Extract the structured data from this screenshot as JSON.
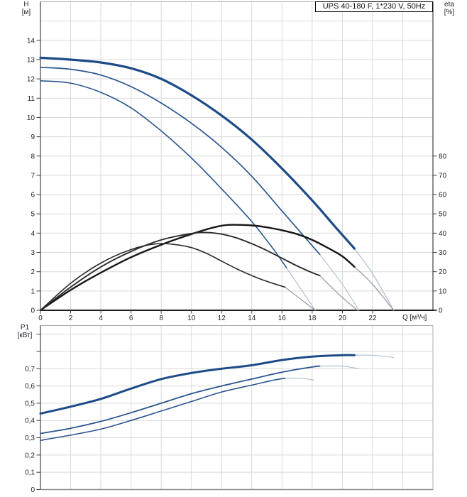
{
  "panel": {
    "background": "#ffffff"
  },
  "styles": {
    "grid": "#d9d9d9",
    "border": "#ababab",
    "axis_line": "#4d4d4d",
    "baseline": "#000000",
    "tick": "#3a3a3a",
    "curve_blue": "#1d4b87",
    "curve_blue_thin": "#2a568e",
    "curve_black": "#161616",
    "runout_blue": "#b2c0d6",
    "runout_gray": "#96989d"
  },
  "chart_data": [
    {
      "type": "line",
      "name": "head-efficiency-chart",
      "title": "UPS 40-180 F, 1*230 V, 50Hz",
      "x_axis": {
        "label": "Q [м³/ч]",
        "min": 0,
        "max": 26,
        "grid_step": 2,
        "ticks": [
          [
            0,
            "0"
          ],
          [
            2,
            "2"
          ],
          [
            4,
            "4"
          ],
          [
            6,
            "6"
          ],
          [
            8,
            "8"
          ],
          [
            10,
            "10"
          ],
          [
            12,
            "12"
          ],
          [
            14,
            "14"
          ],
          [
            16,
            "16"
          ],
          [
            18,
            "18"
          ],
          [
            20,
            "20"
          ],
          [
            22,
            "22"
          ]
        ]
      },
      "y_left": {
        "label_lines": [
          "H",
          "[м]"
        ],
        "min": 0,
        "max": 16,
        "grid_step": 1,
        "ticks": [
          [
            0,
            "0"
          ],
          [
            1,
            "1"
          ],
          [
            2,
            "2"
          ],
          [
            3,
            "3"
          ],
          [
            4,
            "4"
          ],
          [
            5,
            "5"
          ],
          [
            6,
            "6"
          ],
          [
            7,
            "7"
          ],
          [
            8,
            "8"
          ],
          [
            9,
            "9"
          ],
          [
            10,
            "10"
          ],
          [
            11,
            "11"
          ],
          [
            12,
            "12"
          ],
          [
            13,
            "13"
          ],
          [
            14,
            "14"
          ]
        ]
      },
      "y_right": {
        "label_lines": [
          "eta",
          "[%]"
        ],
        "scale": 10,
        "ticks": [
          [
            0,
            "0"
          ],
          [
            10,
            "10"
          ],
          [
            20,
            "20"
          ],
          [
            30,
            "30"
          ],
          [
            40,
            "40"
          ],
          [
            50,
            "50"
          ],
          [
            60,
            "60"
          ],
          [
            70,
            "70"
          ],
          [
            80,
            "80"
          ]
        ]
      },
      "series": [
        {
          "id": "head-speed-3",
          "axis": "left",
          "color": "#1d4b87",
          "width": 3.2,
          "points": [
            [
              0,
              13.1
            ],
            [
              2,
              13.0
            ],
            [
              4,
              12.85
            ],
            [
              6,
              12.55
            ],
            [
              8,
              12.0
            ],
            [
              10,
              11.15
            ],
            [
              12,
              10.1
            ],
            [
              14,
              8.85
            ],
            [
              16,
              7.35
            ],
            [
              18,
              5.7
            ],
            [
              19.5,
              4.35
            ],
            [
              20.8,
              3.2
            ]
          ],
          "runout": {
            "color": "#b2c0d6",
            "width": 1.3,
            "points": [
              [
                20.8,
                3.2
              ],
              [
                22,
                1.9
              ],
              [
                23.4,
                0
              ]
            ]
          }
        },
        {
          "id": "head-speed-2",
          "axis": "left",
          "color": "#2a568e",
          "width": 1.7,
          "points": [
            [
              0,
              12.6
            ],
            [
              2,
              12.5
            ],
            [
              4,
              12.2
            ],
            [
              6,
              11.6
            ],
            [
              8,
              10.75
            ],
            [
              10,
              9.7
            ],
            [
              12,
              8.45
            ],
            [
              14,
              6.95
            ],
            [
              16,
              5.15
            ],
            [
              17.5,
              3.8
            ],
            [
              18.5,
              2.9
            ]
          ],
          "runout": {
            "color": "#b2c0d6",
            "width": 1.2,
            "points": [
              [
                18.5,
                2.9
              ],
              [
                20,
                1.35
              ],
              [
                21.1,
                0
              ]
            ]
          }
        },
        {
          "id": "head-speed-1",
          "axis": "left",
          "color": "#2a568e",
          "width": 1.6,
          "points": [
            [
              0,
              11.9
            ],
            [
              2,
              11.78
            ],
            [
              4,
              11.3
            ],
            [
              6,
              10.5
            ],
            [
              8,
              9.3
            ],
            [
              10,
              7.9
            ],
            [
              12,
              6.3
            ],
            [
              14,
              4.6
            ],
            [
              15.5,
              3.1
            ],
            [
              16.3,
              2.2
            ]
          ],
          "runout": {
            "color": "#b2c0d6",
            "width": 1.2,
            "points": [
              [
                16.3,
                2.2
              ],
              [
                17.3,
                1.05
              ],
              [
                18.2,
                0
              ]
            ]
          }
        },
        {
          "id": "eta-speed-3",
          "axis": "right",
          "color": "#161616",
          "width": 2.4,
          "points": [
            [
              0,
              0
            ],
            [
              2,
              10.5
            ],
            [
              4,
              19.5
            ],
            [
              6,
              27.5
            ],
            [
              8,
              34
            ],
            [
              10,
              39.5
            ],
            [
              11.5,
              43
            ],
            [
              12.5,
              44.3
            ],
            [
              14,
              44
            ],
            [
              15,
              43
            ],
            [
              16,
              41.5
            ],
            [
              17,
              39.5
            ],
            [
              18,
              36.5
            ],
            [
              19,
              32.5
            ],
            [
              20,
              28
            ],
            [
              20.8,
              22.5
            ]
          ],
          "runout": {
            "color": "#96989d",
            "width": 1.2,
            "points": [
              [
                20.8,
                22.5
              ],
              [
                22,
                13.5
              ],
              [
                23.4,
                0
              ]
            ]
          }
        },
        {
          "id": "eta-speed-2",
          "axis": "right",
          "color": "#2b2b2b",
          "width": 1.9,
          "points": [
            [
              0,
              0
            ],
            [
              2,
              12
            ],
            [
              4,
              22.5
            ],
            [
              6,
              30.5
            ],
            [
              8,
              36.5
            ],
            [
              10,
              39.8
            ],
            [
              11,
              40.3
            ],
            [
              12,
              39.5
            ],
            [
              13,
              37.5
            ],
            [
              14,
              34.5
            ],
            [
              15,
              31
            ],
            [
              16,
              27
            ],
            [
              17,
              23
            ],
            [
              18,
              19.5
            ],
            [
              18.5,
              18
            ]
          ],
          "runout": {
            "color": "#96989d",
            "width": 1.2,
            "points": [
              [
                18.5,
                18
              ],
              [
                19.8,
                8
              ],
              [
                21,
                0
              ]
            ]
          }
        },
        {
          "id": "eta-speed-1",
          "axis": "right",
          "color": "#2b2b2b",
          "width": 1.6,
          "points": [
            [
              0,
              0
            ],
            [
              2,
              14
            ],
            [
              4,
              24.5
            ],
            [
              6,
              31.5
            ],
            [
              7.7,
              34.5
            ],
            [
              9,
              34
            ],
            [
              10,
              32.5
            ],
            [
              11,
              29.5
            ],
            [
              12,
              25.5
            ],
            [
              13,
              21.5
            ],
            [
              14,
              18
            ],
            [
              15,
              15
            ],
            [
              16.2,
              12
            ]
          ],
          "runout": {
            "color": "#96989d",
            "width": 1.2,
            "points": [
              [
                16.2,
                12
              ],
              [
                17.2,
                6
              ],
              [
                18.2,
                0
              ]
            ]
          }
        }
      ]
    },
    {
      "type": "line",
      "name": "power-chart",
      "x_axis": {
        "min": 0,
        "max": 26,
        "grid_step": 2,
        "ticks": []
      },
      "y_left": {
        "label_lines": [
          "P1",
          "[кВт]"
        ],
        "min": 0,
        "max": 0.95,
        "grid_step": 0.1,
        "ticks": [
          [
            0,
            "0"
          ],
          [
            0.1,
            "0,1"
          ],
          [
            0.2,
            "0,2"
          ],
          [
            0.3,
            "0,3"
          ],
          [
            0.4,
            "0,4"
          ],
          [
            0.5,
            "0,5"
          ],
          [
            0.6,
            "0,6"
          ],
          [
            0.7,
            "0,7"
          ],
          [
            0.8,
            ""
          ],
          [
            0.9,
            ""
          ]
        ]
      },
      "series": [
        {
          "id": "power-speed-3",
          "axis": "left",
          "color": "#1d4b87",
          "width": 3.0,
          "points": [
            [
              0,
              0.44
            ],
            [
              2,
              0.48
            ],
            [
              4,
              0.525
            ],
            [
              6,
              0.585
            ],
            [
              8,
              0.64
            ],
            [
              10,
              0.675
            ],
            [
              12,
              0.7
            ],
            [
              14,
              0.72
            ],
            [
              16,
              0.75
            ],
            [
              18,
              0.77
            ],
            [
              20,
              0.778
            ],
            [
              20.8,
              0.778
            ]
          ],
          "runout": {
            "color": "#b2c0d6",
            "width": 1.2,
            "points": [
              [
                20.8,
                0.778
              ],
              [
                22,
                0.778
              ],
              [
                23.4,
                0.765
              ]
            ]
          }
        },
        {
          "id": "power-speed-2",
          "axis": "left",
          "color": "#2a568e",
          "width": 1.8,
          "points": [
            [
              0,
              0.325
            ],
            [
              2,
              0.355
            ],
            [
              4,
              0.395
            ],
            [
              6,
              0.445
            ],
            [
              8,
              0.5
            ],
            [
              10,
              0.555
            ],
            [
              12,
              0.6
            ],
            [
              14,
              0.64
            ],
            [
              16,
              0.68
            ],
            [
              18,
              0.71
            ],
            [
              18.5,
              0.715
            ]
          ],
          "runout": {
            "color": "#b2c0d6",
            "width": 1.2,
            "points": [
              [
                18.5,
                0.715
              ],
              [
                20,
                0.715
              ],
              [
                21.1,
                0.7
              ]
            ]
          }
        },
        {
          "id": "power-speed-1",
          "axis": "left",
          "color": "#2a568e",
          "width": 1.6,
          "points": [
            [
              0,
              0.285
            ],
            [
              2,
              0.315
            ],
            [
              4,
              0.35
            ],
            [
              6,
              0.4
            ],
            [
              8,
              0.455
            ],
            [
              10,
              0.51
            ],
            [
              12,
              0.565
            ],
            [
              14,
              0.605
            ],
            [
              15.5,
              0.635
            ],
            [
              16.2,
              0.645
            ]
          ],
          "runout": {
            "color": "#b2c0d6",
            "width": 1.2,
            "points": [
              [
                16.2,
                0.645
              ],
              [
                17.2,
                0.645
              ],
              [
                18.1,
                0.635
              ]
            ]
          }
        }
      ]
    }
  ]
}
